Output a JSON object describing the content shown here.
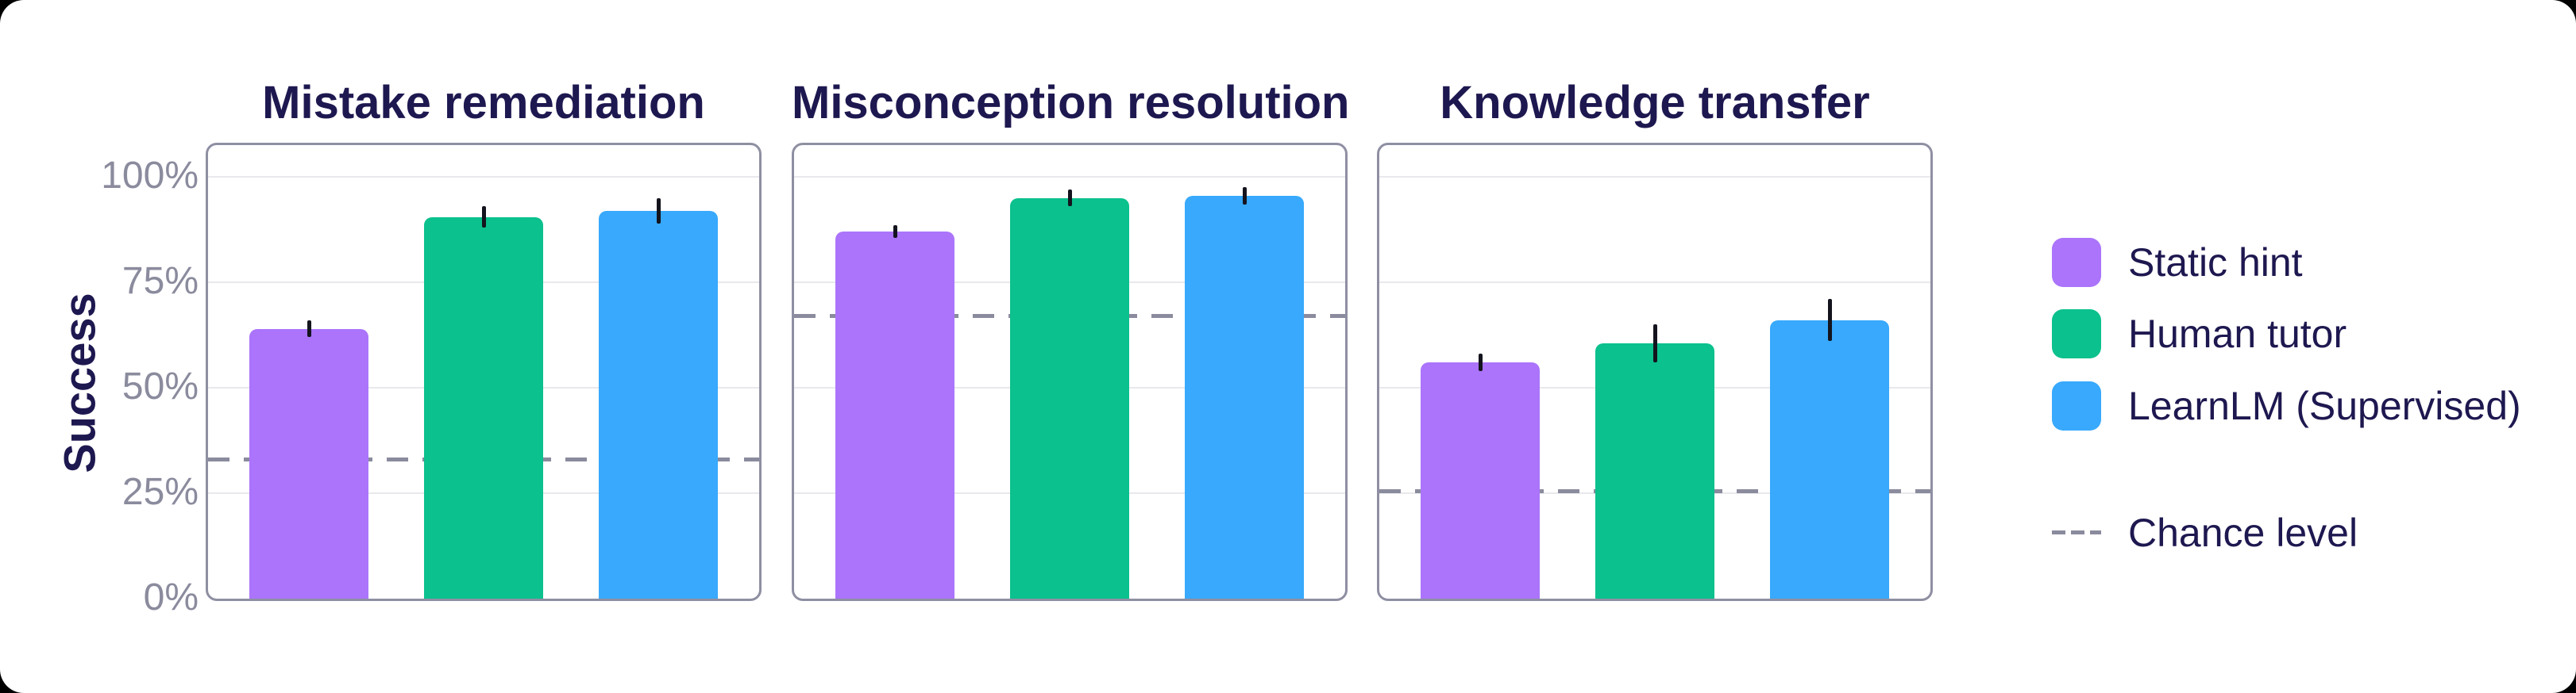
{
  "figure": {
    "ylabel": "Success",
    "yticks": [
      {
        "label": "100%",
        "value": 100
      },
      {
        "label": "75%",
        "value": 75
      },
      {
        "label": "50%",
        "value": 50
      },
      {
        "label": "25%",
        "value": 25
      },
      {
        "label": "0%",
        "value": 0
      }
    ]
  },
  "chart_data": {
    "type": "bar",
    "ylabel": "Success",
    "ylim": [
      0,
      107.5
    ],
    "grid": true,
    "gridline_values": [
      25,
      50,
      75,
      100
    ],
    "legend_position": "right",
    "series_names": [
      "Static hint",
      "Human tutor",
      "LearnLM (Supervised)"
    ],
    "series_colors": [
      "#AB74FB",
      "#0BC18D",
      "#38A9FD"
    ],
    "panels": [
      {
        "title": "Mistake remediation",
        "values": [
          64,
          90.5,
          92
        ],
        "errors": [
          2,
          2.5,
          3
        ],
        "chance_level": 33
      },
      {
        "title": "Misconception resolution",
        "values": [
          87,
          95,
          95.5
        ],
        "errors": [
          1.5,
          2,
          2
        ],
        "chance_level": 67
      },
      {
        "title": "Knowledge transfer",
        "values": [
          56,
          60.5,
          66
        ],
        "errors": [
          2,
          4.5,
          5
        ],
        "chance_level": 25.5
      }
    ],
    "legend": {
      "items": [
        {
          "label": "Static hint",
          "color": "#AB74FB"
        },
        {
          "label": "Human tutor",
          "color": "#0BC18D"
        },
        {
          "label": "LearnLM (Supervised)",
          "color": "#38A9FD"
        }
      ],
      "chance_label": "Chance level"
    }
  },
  "colors": {
    "title_text": "#1E1850",
    "tick_text": "#8B8B9E",
    "panel_border": "#8F8FA3",
    "gridline": "#E8E8ED",
    "chance_dash": "#8B8B9E",
    "error_bar": "#14141E",
    "card_background": "#FFFFFF"
  }
}
